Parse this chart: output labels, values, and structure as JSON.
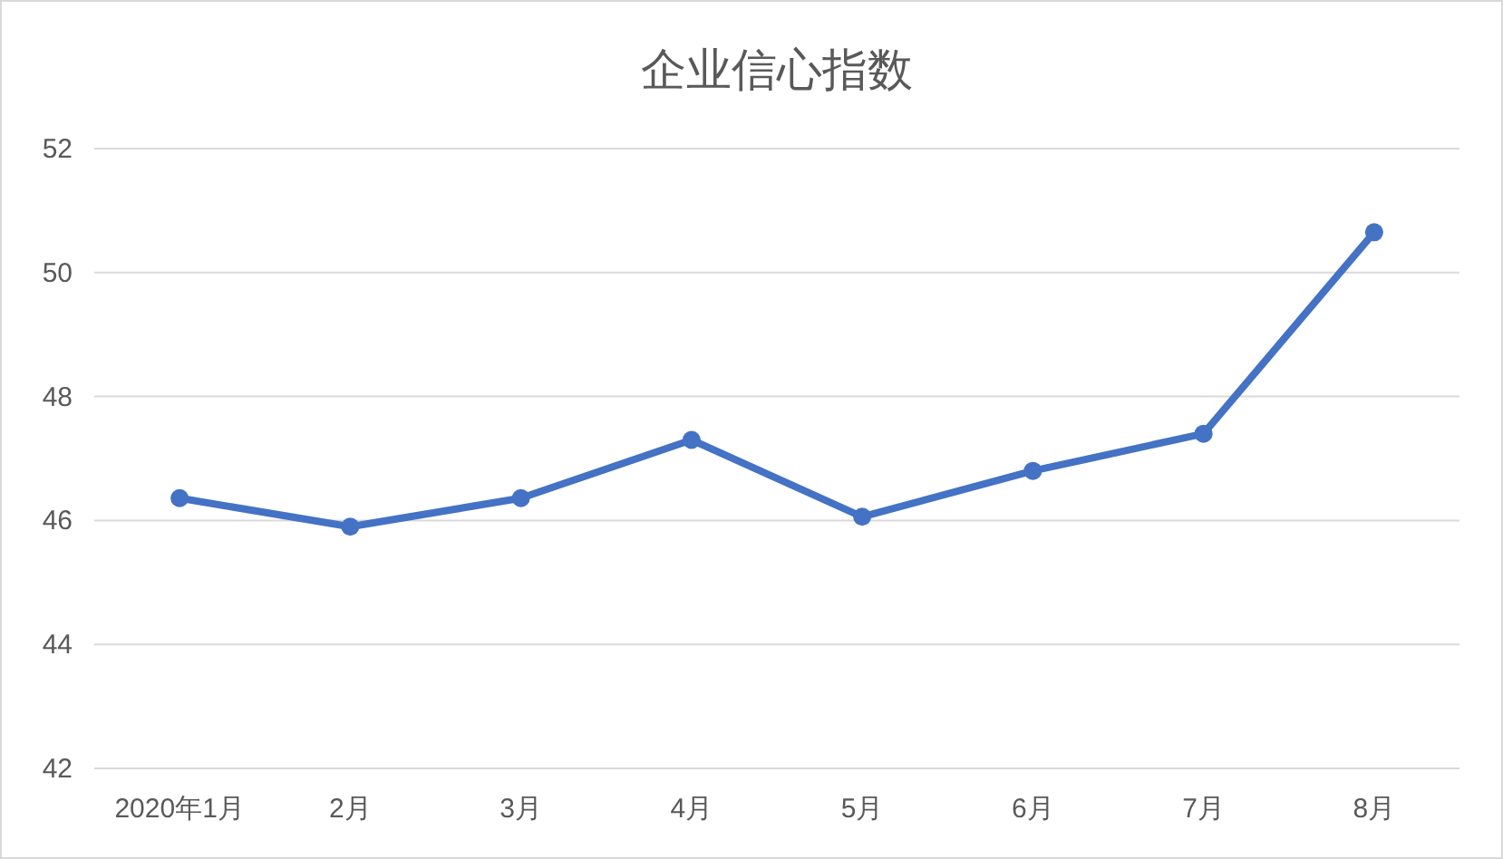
{
  "chart_data": {
    "type": "line",
    "title": "企业信心指数",
    "categories": [
      "2020年1月",
      "2月",
      "3月",
      "4月",
      "5月",
      "6月",
      "7月",
      "8月"
    ],
    "series": [
      {
        "color": "#4472c4",
        "values": [
          46.36,
          45.9,
          46.36,
          47.3,
          46.06,
          46.8,
          47.4,
          50.65
        ]
      }
    ],
    "ylim": [
      42,
      52
    ],
    "yticks": [
      42,
      44,
      46,
      48,
      50,
      52
    ],
    "grid": "y",
    "marker": "circle",
    "line_style": "solid"
  }
}
